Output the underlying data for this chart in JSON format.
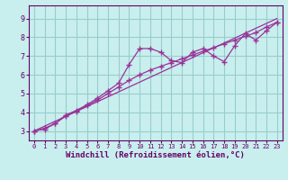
{
  "xlabel": "Windchill (Refroidissement éolien,°C)",
  "bg_color": "#c8efee",
  "line_color": "#993399",
  "grid_color": "#99cccc",
  "axis_color": "#660066",
  "text_color": "#660066",
  "xlim": [
    -0.5,
    23.5
  ],
  "ylim": [
    2.5,
    9.7
  ],
  "yticks": [
    3,
    4,
    5,
    6,
    7,
    8,
    9
  ],
  "xticks": [
    0,
    1,
    2,
    3,
    4,
    5,
    6,
    7,
    8,
    9,
    10,
    11,
    12,
    13,
    14,
    15,
    16,
    17,
    18,
    19,
    20,
    21,
    22,
    23
  ],
  "line1_x": [
    0,
    1,
    2,
    3,
    4,
    5,
    6,
    7,
    8,
    9,
    10,
    11,
    12,
    13,
    14,
    15,
    16,
    17,
    18,
    19,
    20,
    21,
    22,
    23
  ],
  "line1_y": [
    3.0,
    3.1,
    3.4,
    3.85,
    4.1,
    4.4,
    4.75,
    5.15,
    5.55,
    6.55,
    7.4,
    7.4,
    7.2,
    6.75,
    6.65,
    7.2,
    7.4,
    7.0,
    6.7,
    7.55,
    8.2,
    7.85,
    8.35,
    8.8
  ],
  "line2_x": [
    0,
    1,
    2,
    3,
    4,
    5,
    6,
    7,
    8,
    9,
    10,
    11,
    12,
    13,
    14,
    15,
    16,
    17,
    18,
    19,
    20,
    21,
    22,
    23
  ],
  "line2_y": [
    3.0,
    3.15,
    3.4,
    3.8,
    4.05,
    4.35,
    4.65,
    5.0,
    5.35,
    5.7,
    6.0,
    6.25,
    6.45,
    6.65,
    6.85,
    7.05,
    7.25,
    7.45,
    7.65,
    7.85,
    8.05,
    8.25,
    8.55,
    8.8
  ],
  "line3_x": [
    0,
    23
  ],
  "line3_y": [
    3.0,
    9.0
  ]
}
